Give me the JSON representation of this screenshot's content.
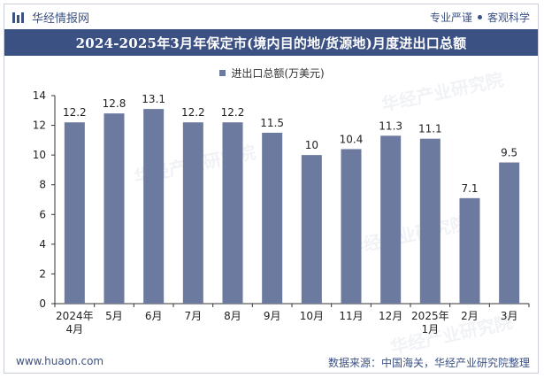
{
  "brand": {
    "name": "华经情报网",
    "tagline_left": "专业严谨",
    "tagline_right": "客观科学"
  },
  "watermark": "华经产业研究院",
  "colors": {
    "accent": "#3b5184",
    "bar": "#6b7a9e"
  },
  "chart_data": {
    "type": "bar",
    "title": "2024-2025年3月年保定市(境内目的地/货源地)月度进出口总额",
    "legend": [
      "进出口总额(万美元)"
    ],
    "categories": [
      [
        "2024年",
        "4月"
      ],
      [
        "5月"
      ],
      [
        "6月"
      ],
      [
        "7月"
      ],
      [
        "8月"
      ],
      [
        "9月"
      ],
      [
        "10月"
      ],
      [
        "11月"
      ],
      [
        "12月"
      ],
      [
        "2025年",
        "1月"
      ],
      [
        "2月"
      ],
      [
        "3月"
      ]
    ],
    "values": [
      12.2,
      12.8,
      13.1,
      12.2,
      12.2,
      11.5,
      10,
      10.4,
      11.3,
      11.1,
      7.1,
      9.5
    ],
    "labels": [
      "12.2",
      "12.8",
      "13.1",
      "12.2",
      "12.2",
      "11.5",
      "10",
      "10.4",
      "11.3",
      "11.1",
      "7.1",
      "9.5"
    ],
    "yticks": [
      0,
      2,
      4,
      6,
      8,
      10,
      12,
      14
    ],
    "ylim": [
      0,
      14
    ],
    "xlabel": "",
    "ylabel": "",
    "grid": false
  },
  "footer": {
    "website": "www.huaon.com",
    "source": "数据来源：中国海关，华经产业研究院整理"
  }
}
